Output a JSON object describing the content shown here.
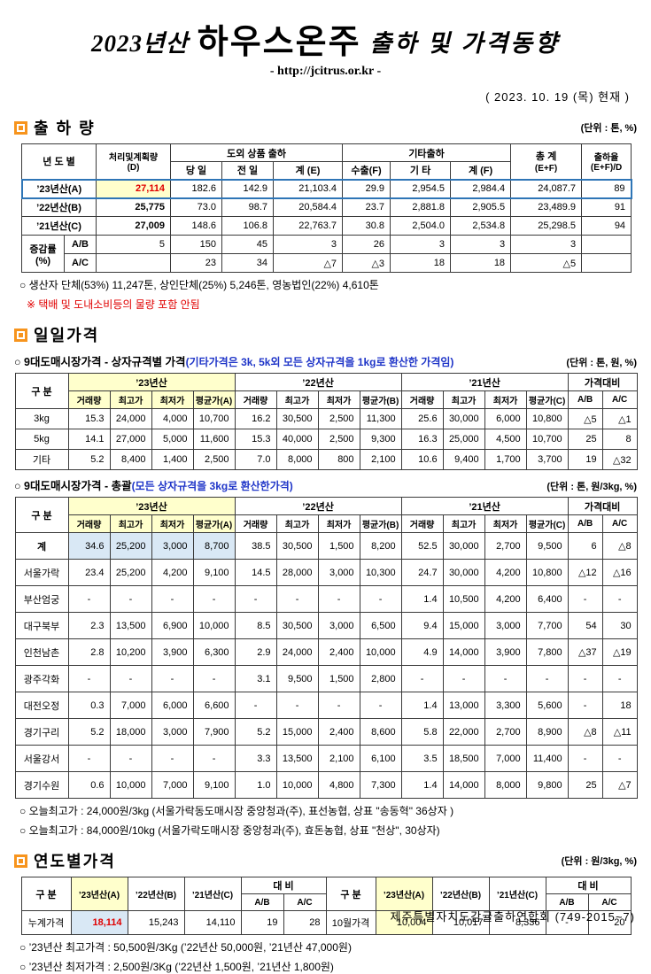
{
  "page": {
    "title_year": "2023년산",
    "title_main": "하우스온주",
    "title_rest": "출하 및 가격동향",
    "url": "- http://jcitrus.or.kr -",
    "asof": "( 2023. 10. 19 (목) 현재 )",
    "footer": "제주특별자치도감귤출하연합회 (749-2015~7)"
  },
  "s1": {
    "title": "출 하 량",
    "unit": "(단위 : 톤, %)",
    "h": {
      "year": "년 도 별",
      "plan1": "처리및계획량",
      "plan2": "(D)",
      "export_group": "도외 상품 출하",
      "today": "당 일",
      "prev": "전 일",
      "sumE": "계 (E)",
      "etc_group": "기타출하",
      "exportF": "수출(F)",
      "etc": "기 타",
      "sumF": "계 (F)",
      "total1": "총 계",
      "total2": "(E+F)",
      "rate1": "출하율",
      "rate2": "(E+F)/D"
    },
    "rows": [
      {
        "label": "’23년산(A)",
        "v": [
          "27,114",
          "182.6",
          "142.9",
          "21,103.4",
          "29.9",
          "2,954.5",
          "2,984.4",
          "24,087.7",
          "89"
        ]
      },
      {
        "label": "’22년산(B)",
        "v": [
          "25,775",
          "73.0",
          "98.7",
          "20,584.4",
          "23.7",
          "2,881.8",
          "2,905.5",
          "23,489.9",
          "91"
        ]
      },
      {
        "label": "’21년산(C)",
        "v": [
          "27,009",
          "148.6",
          "106.8",
          "22,763.7",
          "30.8",
          "2,504.0",
          "2,534.8",
          "25,298.5",
          "94"
        ]
      }
    ],
    "diff": {
      "label1": "증감률",
      "label2": "(%)",
      "ab": {
        "label": "A/B",
        "v": [
          "5",
          "150",
          "45",
          "3",
          "26",
          "3",
          "3",
          "3",
          ""
        ]
      },
      "ac": {
        "label": "A/C",
        "v": [
          "",
          "23",
          "34",
          "△7",
          "△3",
          "18",
          "18",
          "△5",
          ""
        ]
      }
    },
    "note1": "○ 생산자 단체(53%) 11,247톤, 상인단체(25%) 5,246톤, 영농법인(22%) 4,610톤",
    "note2": "※ 택배 및 도내소비등의 물량 포함 안됨"
  },
  "s2": {
    "title": "일일가격",
    "sub_black": "○ 9대도매시장가격 - 상자규격별 가격",
    "sub_blue": "(기타가격은 3k, 5k외 모든 상자규격을 1kg로 환산한 가격임)",
    "sub_unit": "(단위 : 톤, 원, %)",
    "h": {
      "gubun": "구 분",
      "y23": "’23년산",
      "y22": "’22년산",
      "y21": "’21년산",
      "ratio": "가격대비",
      "qty": "거래량",
      "high": "최고가",
      "low": "최저가",
      "avgA": "평균가(A)",
      "avgB": "평균가(B)",
      "avgC": "평균가(C)",
      "ab": "A/B",
      "ac": "A/C"
    },
    "rows": [
      {
        "label": "3kg",
        "v": [
          "15.3",
          "24,000",
          "4,000",
          "10,700",
          "16.2",
          "30,500",
          "2,500",
          "11,300",
          "25.6",
          "30,000",
          "6,000",
          "10,800",
          "△5",
          "△1"
        ]
      },
      {
        "label": "5kg",
        "v": [
          "14.1",
          "27,000",
          "5,000",
          "11,600",
          "15.3",
          "40,000",
          "2,500",
          "9,300",
          "16.3",
          "25,000",
          "4,500",
          "10,700",
          "25",
          "8"
        ]
      },
      {
        "label": "기타",
        "v": [
          "5.2",
          "8,400",
          "1,400",
          "2,500",
          "7.0",
          "8,000",
          "800",
          "2,100",
          "10.6",
          "9,400",
          "1,700",
          "3,700",
          "19",
          "△32"
        ]
      }
    ]
  },
  "s3": {
    "sub_black": "○ 9대도매시장가격 - 총괄",
    "sub_blue": "(모든 상자규격을 3kg로 환산한가격)",
    "sub_unit": "(단위 : 톤, 원/3kg, %)",
    "rows": [
      {
        "label": "계",
        "mark": true,
        "v": [
          "34.6",
          "25,200",
          "3,000",
          "8,700",
          "38.5",
          "30,500",
          "1,500",
          "8,200",
          "52.5",
          "30,000",
          "2,700",
          "9,500",
          "6",
          "△8"
        ]
      },
      {
        "label": "서울가락",
        "v": [
          "23.4",
          "25,200",
          "4,200",
          "9,100",
          "14.5",
          "28,000",
          "3,000",
          "10,300",
          "24.7",
          "30,000",
          "4,200",
          "10,800",
          "△12",
          "△16"
        ]
      },
      {
        "label": "부산엄궁",
        "v": [
          "-",
          "-",
          "-",
          "-",
          "-",
          "-",
          "-",
          "-",
          "1.4",
          "10,500",
          "4,200",
          "6,400",
          "-",
          "-"
        ]
      },
      {
        "label": "대구북부",
        "v": [
          "2.3",
          "13,500",
          "6,900",
          "10,000",
          "8.5",
          "30,500",
          "3,000",
          "6,500",
          "9.4",
          "15,000",
          "3,000",
          "7,700",
          "54",
          "30"
        ]
      },
      {
        "label": "인천남촌",
        "v": [
          "2.8",
          "10,200",
          "3,900",
          "6,300",
          "2.9",
          "24,000",
          "2,400",
          "10,000",
          "4.9",
          "14,000",
          "3,900",
          "7,800",
          "△37",
          "△19"
        ]
      },
      {
        "label": "광주각화",
        "v": [
          "-",
          "-",
          "-",
          "-",
          "3.1",
          "9,500",
          "1,500",
          "2,800",
          "-",
          "-",
          "-",
          "-",
          "-",
          "-"
        ]
      },
      {
        "label": "대전오정",
        "v": [
          "0.3",
          "7,000",
          "6,000",
          "6,600",
          "-",
          "-",
          "-",
          "-",
          "1.4",
          "13,000",
          "3,300",
          "5,600",
          "-",
          "18"
        ]
      },
      {
        "label": "경기구리",
        "v": [
          "5.2",
          "18,000",
          "3,000",
          "7,900",
          "5.2",
          "15,000",
          "2,400",
          "8,600",
          "5.8",
          "22,000",
          "2,700",
          "8,900",
          "△8",
          "△11"
        ]
      },
      {
        "label": "서울강서",
        "v": [
          "-",
          "-",
          "-",
          "-",
          "3.3",
          "13,500",
          "2,100",
          "6,100",
          "3.5",
          "18,500",
          "7,000",
          "11,400",
          "-",
          "-"
        ]
      },
      {
        "label": "경기수원",
        "v": [
          "0.6",
          "10,000",
          "7,000",
          "9,100",
          "1.0",
          "10,000",
          "4,800",
          "7,300",
          "1.4",
          "14,000",
          "8,000",
          "9,800",
          "25",
          "△7"
        ]
      }
    ],
    "note1": "○ 오늘최고가 : 24,000원/3kg (서울가락동도매시장 중앙청과(주), 표선농협, 상표 \"송동혁\" 36상자 )",
    "note2": "○ 오늘최고가 : 84,000원/10kg (서울가락도매시장 중앙청과(주), 효돈농협, 상표 \"천상\", 30상자)"
  },
  "s4": {
    "title": "연도별가격",
    "unit": "(단위 : 원/3kg, %)",
    "h": {
      "gubun": "구 분",
      "y23": "’23년산(A)",
      "y22": "’22년산(B)",
      "y21": "’21년산(C)",
      "dae": "대  비",
      "ab": "A/B",
      "ac": "A/C"
    },
    "left": {
      "label": "누계가격",
      "v": [
        "18,114",
        "15,243",
        "14,110",
        "19",
        "28"
      ]
    },
    "right": {
      "label": "10월가격",
      "v": [
        "10,004",
        "10,017",
        "8,336",
        "-",
        "20"
      ]
    },
    "note1": "○ ’23년산 최고가격 : 50,500원/3Kg (’22년산 50,000원, ’21년산 47,000원)",
    "note2": "○ ’23년산 최저가격 :   2,500원/3Kg (’22년산 1,500원, ’21년산 1,800원)"
  }
}
